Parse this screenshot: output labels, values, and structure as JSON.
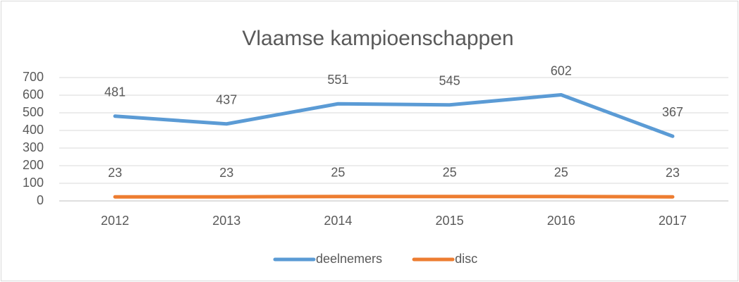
{
  "chart_data": {
    "type": "line",
    "title": "Vlaamse kampioenschappen",
    "categories": [
      "2012",
      "2013",
      "2014",
      "2015",
      "2016",
      "2017"
    ],
    "series": [
      {
        "name": "deelnemers",
        "color": "#5b9bd5",
        "values": [
          481,
          437,
          551,
          545,
          602,
          367
        ]
      },
      {
        "name": "disc",
        "color": "#ed7d31",
        "values": [
          23,
          23,
          25,
          25,
          25,
          23
        ]
      }
    ],
    "ylim": [
      0,
      700
    ],
    "yticks": [
      0,
      100,
      200,
      300,
      400,
      500,
      600,
      700
    ],
    "grid": true,
    "legend": "bottom"
  }
}
